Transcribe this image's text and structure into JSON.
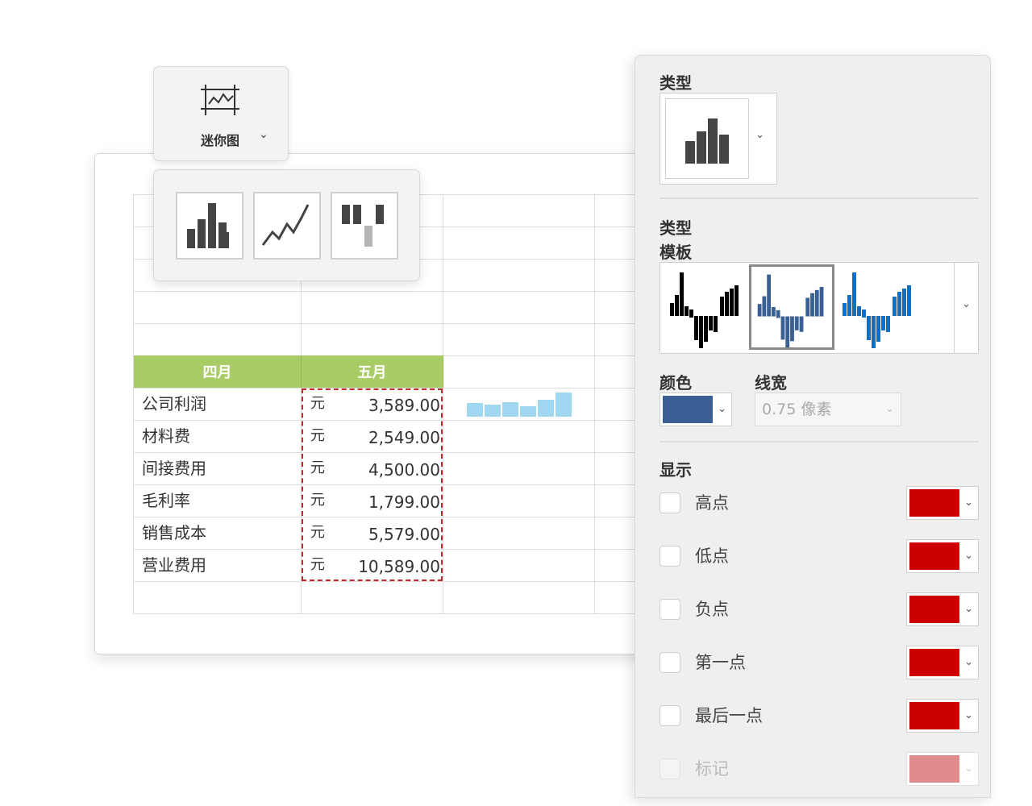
{
  "ribbon": {
    "sparkline_label": "迷你图",
    "chevron": "⌄",
    "icon": "sparkline-group-icon",
    "types": [
      {
        "name": "column",
        "icon": "column-sparkline-icon"
      },
      {
        "name": "line",
        "icon": "line-sparkline-icon"
      },
      {
        "name": "win-loss",
        "icon": "winloss-sparkline-icon"
      }
    ]
  },
  "table": {
    "headers": [
      "四月",
      "五月"
    ],
    "header_color": "#a9cc67",
    "unit": "元",
    "rows": [
      {
        "label": "公司利润",
        "unit": "元",
        "value": "3,589.00"
      },
      {
        "label": "材料费",
        "unit": "元",
        "value": "2,549.00"
      },
      {
        "label": "间接费用",
        "unit": "元",
        "value": "4,500.00"
      },
      {
        "label": "毛利率",
        "unit": "元",
        "value": "1,799.00"
      },
      {
        "label": "销售成本",
        "unit": "元",
        "value": "5,579.00"
      },
      {
        "label": "营业费用",
        "unit": "元",
        "value": "10,589.00"
      }
    ],
    "sparkline_color": "#a0d8f1",
    "selection_color": "#c0282b"
  },
  "panel": {
    "type_title": "类型",
    "template_title": "类型",
    "template_subtitle": "模板",
    "color_title": "颜色",
    "linewidth_title": "线宽",
    "linewidth_value": "0.75 像素",
    "selected_color": "#3a5f94",
    "show_title": "显示",
    "template_colors": [
      "#000000",
      "#3a5f94",
      "#0f6fc4"
    ],
    "show_items": [
      {
        "label": "高点",
        "color": "#cc0000",
        "enabled": true
      },
      {
        "label": "低点",
        "color": "#cc0000",
        "enabled": true
      },
      {
        "label": "负点",
        "color": "#cc0000",
        "enabled": true
      },
      {
        "label": "第一点",
        "color": "#cc0000",
        "enabled": true
      },
      {
        "label": "最后一点",
        "color": "#cc0000",
        "enabled": true
      },
      {
        "label": "标记",
        "color": "#e08c8c",
        "enabled": false
      }
    ],
    "chevron": "⌄"
  }
}
